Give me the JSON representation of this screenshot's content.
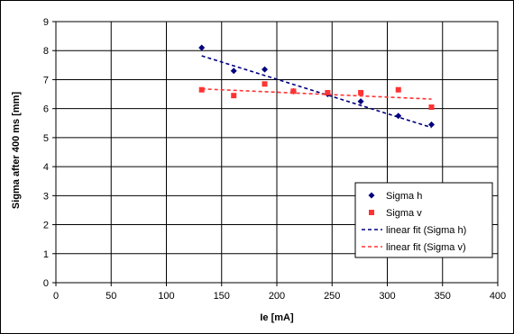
{
  "chart_data": {
    "type": "scatter",
    "title": "",
    "xlabel": "Ie [mA]",
    "ylabel": "Sigma after 400 ms [mm]",
    "xlim": [
      0,
      400
    ],
    "ylim": [
      0,
      9
    ],
    "x_ticks": [
      "0",
      "50",
      "100",
      "150",
      "200",
      "250",
      "300",
      "350",
      "400"
    ],
    "y_ticks": [
      "0",
      "1",
      "2",
      "3",
      "4",
      "5",
      "6",
      "7",
      "8",
      "9"
    ],
    "grid": true,
    "legend_position": "bottom-right",
    "series": [
      {
        "name": "Sigma h",
        "marker": "diamond",
        "color": "#00007f",
        "points": [
          {
            "x": 132,
            "y": 8.1
          },
          {
            "x": 161,
            "y": 7.3
          },
          {
            "x": 189,
            "y": 7.35
          },
          {
            "x": 215,
            "y": 6.6
          },
          {
            "x": 246,
            "y": 6.5
          },
          {
            "x": 276,
            "y": 6.25
          },
          {
            "x": 310,
            "y": 5.75
          },
          {
            "x": 340,
            "y": 5.45
          }
        ]
      },
      {
        "name": "Sigma v",
        "marker": "square",
        "color": "#ff3333",
        "points": [
          {
            "x": 132,
            "y": 6.65
          },
          {
            "x": 161,
            "y": 6.45
          },
          {
            "x": 189,
            "y": 6.85
          },
          {
            "x": 215,
            "y": 6.6
          },
          {
            "x": 246,
            "y": 6.55
          },
          {
            "x": 276,
            "y": 6.55
          },
          {
            "x": 310,
            "y": 6.65
          },
          {
            "x": 340,
            "y": 6.05
          }
        ]
      }
    ],
    "fits": [
      {
        "name": "linear fit (Sigma h)",
        "color": "#00007f",
        "x": [
          132,
          340
        ],
        "y": [
          7.82,
          5.35
        ]
      },
      {
        "name": "linear fit (Sigma v)",
        "color": "#ff3333",
        "x": [
          132,
          340
        ],
        "y": [
          6.68,
          6.33
        ]
      }
    ]
  }
}
